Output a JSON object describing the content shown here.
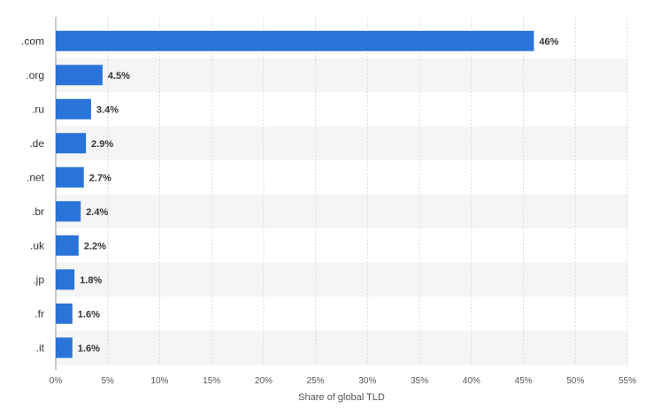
{
  "chart_data": {
    "type": "bar",
    "orientation": "horizontal",
    "categories": [
      ".com",
      ".org",
      ".ru",
      ".de",
      ".net",
      ".br",
      ".uk",
      ".jp",
      ".fr",
      ".it"
    ],
    "values": [
      46,
      4.5,
      3.4,
      2.9,
      2.7,
      2.4,
      2.2,
      1.8,
      1.6,
      1.6
    ],
    "value_labels": [
      "46%",
      "4.5%",
      "3.4%",
      "2.9%",
      "2.7%",
      "2.4%",
      "2.2%",
      "1.8%",
      "1.6%",
      "1.6%"
    ],
    "xlabel": "Share of global TLD",
    "ylabel": "",
    "title": "",
    "xlim": [
      0,
      55
    ],
    "xticks": [
      0,
      5,
      10,
      15,
      20,
      25,
      30,
      35,
      40,
      45,
      50,
      55
    ],
    "xtick_labels": [
      "0%",
      "5%",
      "10%",
      "15%",
      "20%",
      "25%",
      "30%",
      "35%",
      "40%",
      "45%",
      "50%",
      "55%"
    ],
    "grid": true,
    "legend": "none",
    "colors": {
      "bar": "#2a73d9",
      "stripe": "#f5f5f5",
      "grid": "#d9d9d9",
      "axis": "#9a9a9a",
      "text": "#333333"
    }
  }
}
